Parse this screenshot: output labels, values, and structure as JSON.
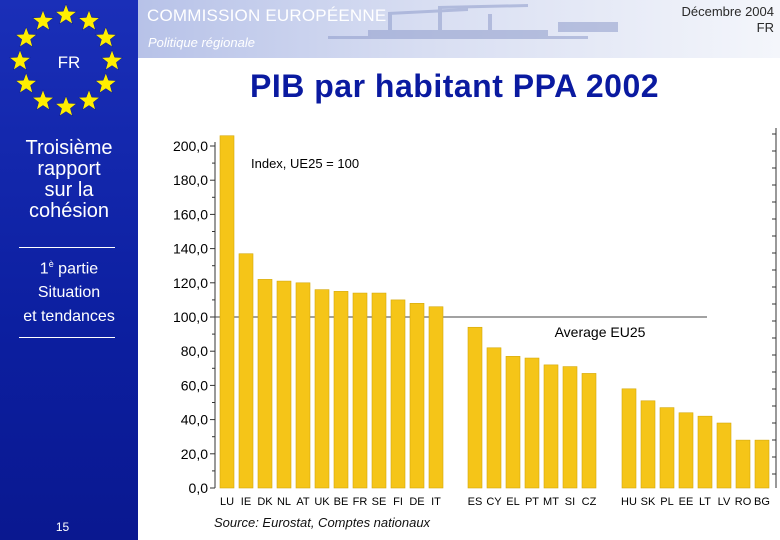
{
  "header": {
    "organization": "COMMISSION EUROPÉENNE",
    "subtitle": "Politique régionale",
    "date": "Décembre 2004",
    "lang": "FR"
  },
  "sidebar": {
    "flag_label": "FR",
    "report_title_lines": [
      "Troisième",
      "rapport",
      "sur la",
      "cohésion"
    ],
    "part_number": "1",
    "part_sup": "è",
    "part_word": " partie",
    "part_lines": [
      "Situation",
      "et tendances"
    ],
    "page_number": "15"
  },
  "title": "PIB par habitant PPA 2002",
  "source": "Source: Eurostat, Comptes nationaux",
  "colors": {
    "sidebar_blue": "#0c1fa0",
    "bar_fill": "#f5c518",
    "bar_edge": "#d4a80a",
    "title_blue": "#0a1aa0"
  },
  "chart_data": {
    "type": "bar",
    "title": "PIB par habitant PPA 2002",
    "note": "Index, UE25 = 100",
    "reference_line": {
      "value": 100,
      "label": "Average EU25"
    },
    "ylim": [
      0,
      200
    ],
    "yticks": [
      "0,0",
      "20,0",
      "40,0",
      "60,0",
      "80,0",
      "100,0",
      "120,0",
      "140,0",
      "160,0",
      "180,0",
      "200,0"
    ],
    "groups": [
      {
        "categories": [
          "LU",
          "IE",
          "DK",
          "NL",
          "AT",
          "UK",
          "BE",
          "FR",
          "SE",
          "FI",
          "DE",
          "IT"
        ],
        "values": [
          206,
          137,
          122,
          121,
          120,
          116,
          115,
          114,
          114,
          110,
          108,
          106
        ]
      },
      {
        "categories": [
          "ES",
          "CY",
          "EL",
          "PT",
          "MT",
          "SI",
          "CZ"
        ],
        "values": [
          94,
          82,
          77,
          76,
          72,
          71,
          67
        ]
      },
      {
        "categories": [
          "HU",
          "SK",
          "PL",
          "EE",
          "LT",
          "LV",
          "RO",
          "BG"
        ],
        "values": [
          58,
          51,
          47,
          44,
          42,
          38,
          28,
          28
        ]
      }
    ],
    "grid": false,
    "legend": "none"
  }
}
